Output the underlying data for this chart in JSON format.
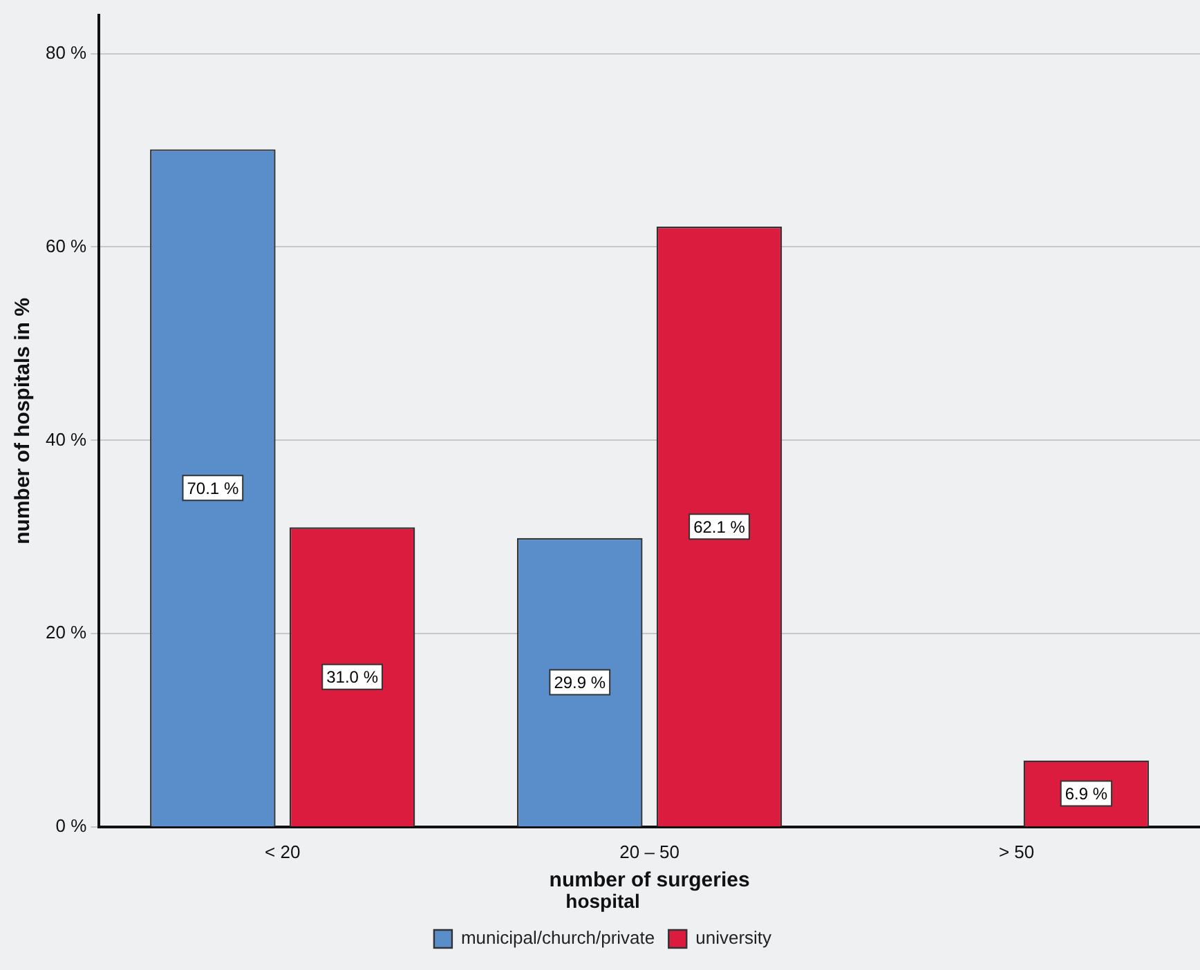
{
  "chart_data": {
    "type": "bar",
    "xlabel": "number of surgeries",
    "ylabel": "number of hospitals in %",
    "legend_title": "hospital",
    "legend": "bottom",
    "grid": "y",
    "categories": [
      "< 20",
      "20 – 50",
      "> 50"
    ],
    "series": [
      {
        "name": "municipal/church/private",
        "color": "#5a8ecb",
        "values": [
          70.1,
          29.9,
          0
        ],
        "value_labels": [
          "70.1 %",
          "29.9 %",
          null
        ]
      },
      {
        "name": "university",
        "color": "#dc1c3e",
        "values": [
          31.0,
          62.1,
          6.9
        ],
        "value_labels": [
          "31.0 %",
          "62.1 %",
          "6.9 %"
        ]
      }
    ],
    "ylim": [
      0,
      84
    ],
    "yticks": [
      {
        "value": 0,
        "label": "0 %"
      },
      {
        "value": 20,
        "label": "20 %"
      },
      {
        "value": 40,
        "label": "40 %"
      },
      {
        "value": 60,
        "label": "60 %"
      },
      {
        "value": 80,
        "label": "80 %"
      }
    ]
  }
}
